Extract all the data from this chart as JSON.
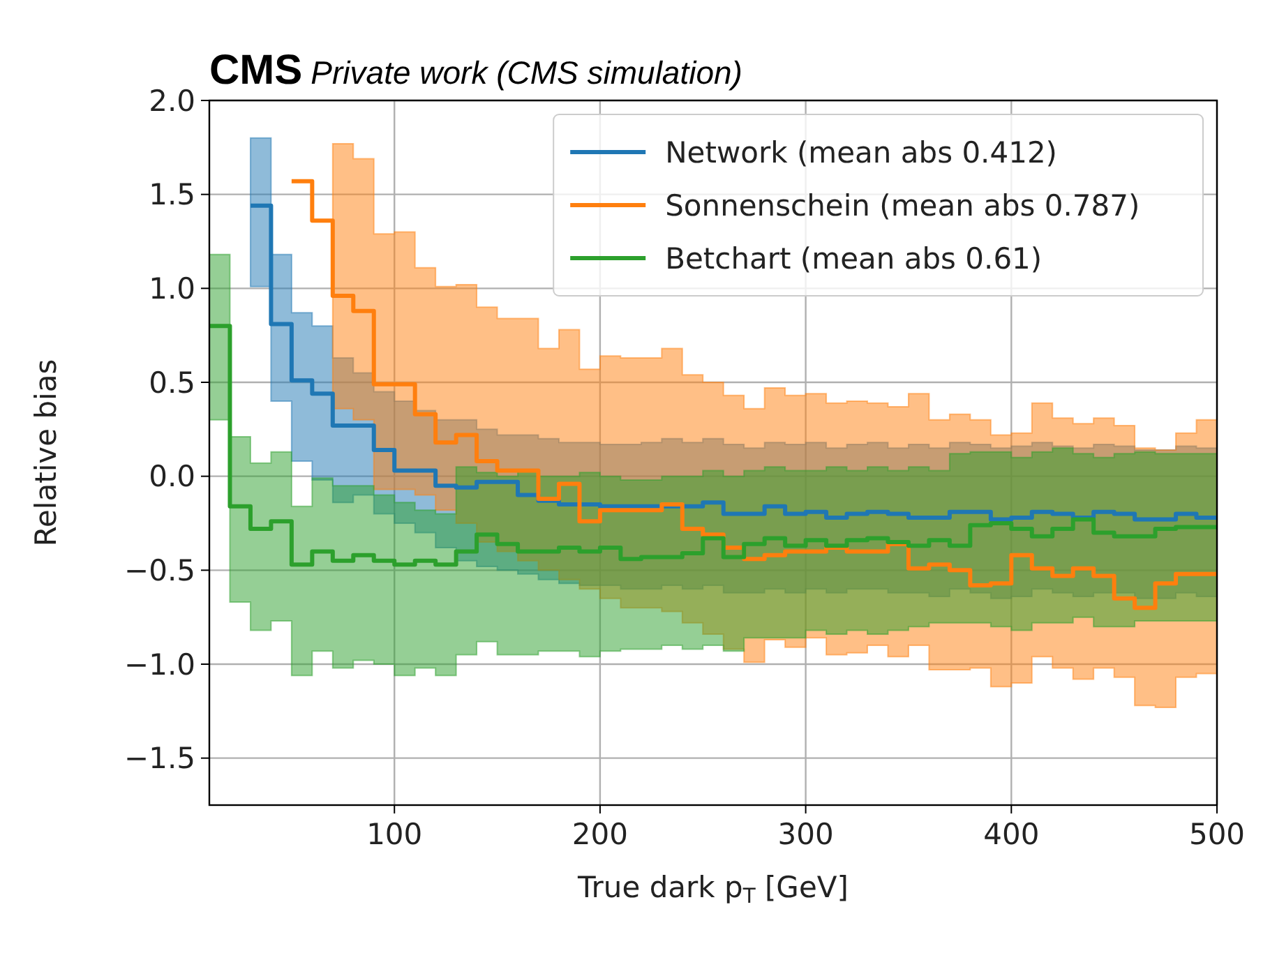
{
  "chart_data": {
    "type": "step",
    "title": "CMS",
    "subtitle": "Private work (CMS simulation)",
    "xlabel": "True dark p$_{T}$ [GeV]",
    "ylabel": "Relative bias",
    "x": [
      10,
      20,
      30,
      40,
      50,
      60,
      70,
      80,
      90,
      100,
      110,
      120,
      130,
      140,
      150,
      160,
      170,
      180,
      190,
      200,
      210,
      220,
      230,
      240,
      250,
      260,
      270,
      280,
      290,
      300,
      310,
      320,
      330,
      340,
      350,
      360,
      370,
      380,
      390,
      400,
      410,
      420,
      430,
      440,
      450,
      460,
      470,
      480,
      490,
      500
    ],
    "xlim": [
      10,
      500
    ],
    "ylim": [
      -1.75,
      2.0
    ],
    "xticks": [
      100,
      200,
      300,
      400,
      500
    ],
    "yticks": [
      {
        "value": -1.5,
        "label": "−1.5"
      },
      {
        "value": -1.0,
        "label": "−1.0"
      },
      {
        "value": -0.5,
        "label": "−0.5"
      },
      {
        "value": 0,
        "label": "0.0"
      },
      {
        "value": 0.5,
        "label": "0.5"
      },
      {
        "value": 1.0,
        "label": "1.0"
      },
      {
        "value": 1.5,
        "label": "1.5"
      },
      {
        "value": 2.0,
        "label": "2.0"
      }
    ],
    "grid": true,
    "legend": "top right",
    "series": [
      {
        "name": "Network (mean abs 0.412)",
        "color": "#1f77b4",
        "values": [
          null,
          null,
          1.44,
          0.81,
          0.51,
          0.44,
          0.27,
          0.27,
          0.14,
          0.03,
          0.03,
          -0.05,
          -0.06,
          -0.03,
          -0.03,
          -0.1,
          -0.13,
          -0.15,
          -0.15,
          -0.16,
          -0.16,
          -0.16,
          -0.16,
          -0.16,
          -0.14,
          -0.2,
          -0.2,
          -0.16,
          -0.2,
          -0.19,
          -0.22,
          -0.2,
          -0.19,
          -0.2,
          -0.22,
          -0.22,
          -0.19,
          -0.19,
          -0.23,
          -0.22,
          -0.19,
          -0.2,
          -0.22,
          -0.19,
          -0.2,
          -0.23,
          -0.23,
          -0.2,
          -0.22,
          -0.22
        ],
        "upper": [
          null,
          null,
          1.8,
          1.18,
          0.87,
          0.8,
          0.63,
          0.55,
          0.45,
          0.4,
          0.35,
          0.3,
          0.3,
          0.25,
          0.22,
          0.22,
          0.2,
          0.18,
          0.18,
          0.17,
          0.17,
          0.18,
          0.2,
          0.18,
          0.2,
          0.17,
          0.15,
          0.18,
          0.17,
          0.18,
          0.15,
          0.17,
          0.18,
          0.15,
          0.17,
          0.15,
          0.18,
          0.17,
          0.15,
          0.16,
          0.18,
          0.16,
          0.15,
          0.17,
          0.16,
          0.14,
          0.14,
          0.16,
          0.15,
          0.15
        ],
        "lower": [
          null,
          null,
          1.01,
          0.4,
          0.08,
          -0.02,
          -0.14,
          -0.1,
          -0.2,
          -0.25,
          -0.3,
          -0.38,
          -0.45,
          -0.48,
          -0.5,
          -0.52,
          -0.55,
          -0.57,
          -0.58,
          -0.58,
          -0.6,
          -0.6,
          -0.58,
          -0.6,
          -0.58,
          -0.62,
          -0.62,
          -0.6,
          -0.62,
          -0.6,
          -0.62,
          -0.6,
          -0.6,
          -0.62,
          -0.62,
          -0.64,
          -0.6,
          -0.62,
          -0.65,
          -0.64,
          -0.6,
          -0.62,
          -0.64,
          -0.62,
          -0.62,
          -0.65,
          -0.65,
          -0.62,
          -0.64,
          -0.64
        ]
      },
      {
        "name": "Sonnenschein (mean abs 0.787)",
        "color": "#ff7f0e",
        "values": [
          null,
          null,
          null,
          null,
          1.57,
          1.36,
          0.96,
          0.88,
          0.49,
          0.49,
          0.33,
          0.18,
          0.22,
          0.08,
          0.03,
          0.03,
          -0.12,
          -0.04,
          -0.24,
          -0.18,
          -0.18,
          -0.18,
          -0.15,
          -0.28,
          -0.31,
          -0.38,
          -0.44,
          -0.42,
          -0.4,
          -0.4,
          -0.38,
          -0.4,
          -0.4,
          -0.36,
          -0.49,
          -0.47,
          -0.5,
          -0.58,
          -0.57,
          -0.42,
          -0.49,
          -0.53,
          -0.49,
          -0.53,
          -0.65,
          -0.7,
          -0.57,
          -0.52,
          -0.52,
          -0.52
        ],
        "upper": [
          null,
          null,
          null,
          null,
          null,
          null,
          1.77,
          1.69,
          1.29,
          1.3,
          1.11,
          1.01,
          1.02,
          0.9,
          0.84,
          0.84,
          0.68,
          0.78,
          0.57,
          0.64,
          0.63,
          0.63,
          0.68,
          0.54,
          0.5,
          0.43,
          0.36,
          0.47,
          0.43,
          0.44,
          0.39,
          0.4,
          0.39,
          0.37,
          0.44,
          0.3,
          0.33,
          0.3,
          0.22,
          0.23,
          0.39,
          0.31,
          0.28,
          0.31,
          0.27,
          0.15,
          0.14,
          0.23,
          0.3,
          0.3
        ],
        "lower": [
          null,
          null,
          null,
          null,
          null,
          null,
          0.36,
          0.3,
          -0.07,
          -0.07,
          -0.1,
          -0.18,
          -0.25,
          -0.35,
          -0.4,
          -0.45,
          -0.5,
          -0.55,
          -0.6,
          -0.65,
          -0.7,
          -0.7,
          -0.72,
          -0.78,
          -0.84,
          -0.92,
          -0.99,
          -0.87,
          -0.91,
          -0.86,
          -0.95,
          -0.94,
          -0.9,
          -0.96,
          -0.9,
          -1.03,
          -1.03,
          -1.02,
          -1.12,
          -1.1,
          -0.96,
          -1.02,
          -1.08,
          -1.02,
          -1.07,
          -1.22,
          -1.23,
          -1.07,
          -1.05,
          -1.05
        ]
      },
      {
        "name": "Betchart (mean abs 0.61)",
        "color": "#2ca02c",
        "values": [
          0.8,
          -0.16,
          -0.28,
          -0.24,
          -0.47,
          -0.4,
          -0.45,
          -0.42,
          -0.45,
          -0.47,
          -0.45,
          -0.47,
          -0.4,
          -0.31,
          -0.36,
          -0.4,
          -0.4,
          -0.38,
          -0.4,
          -0.38,
          -0.44,
          -0.43,
          -0.43,
          -0.41,
          -0.33,
          -0.43,
          -0.36,
          -0.33,
          -0.37,
          -0.34,
          -0.37,
          -0.34,
          -0.33,
          -0.35,
          -0.37,
          -0.34,
          -0.37,
          -0.26,
          -0.25,
          -0.28,
          -0.32,
          -0.28,
          -0.23,
          -0.3,
          -0.32,
          -0.32,
          -0.28,
          -0.27,
          -0.27,
          -0.27
        ],
        "upper": [
          1.18,
          0.21,
          0.07,
          0.13,
          -0.16,
          -0.01,
          -0.05,
          -0.05,
          -0.1,
          -0.14,
          -0.18,
          -0.2,
          0.05,
          0.02,
          0.0,
          0.03,
          0.0,
          0.0,
          0.02,
          0.0,
          -0.02,
          -0.02,
          0.0,
          0.0,
          0.03,
          0.0,
          0.03,
          0.05,
          0.03,
          0.03,
          0.05,
          0.03,
          0.05,
          0.03,
          0.05,
          0.03,
          0.12,
          0.13,
          0.13,
          0.1,
          0.13,
          0.15,
          0.12,
          0.1,
          0.12,
          0.13,
          0.12,
          0.12,
          0.12,
          0.12
        ],
        "lower": [
          0.3,
          -0.67,
          -0.82,
          -0.77,
          -1.06,
          -0.93,
          -1.02,
          -0.98,
          -1.0,
          -1.06,
          -1.02,
          -1.06,
          -0.95,
          -0.88,
          -0.95,
          -0.95,
          -0.93,
          -0.93,
          -0.96,
          -0.93,
          -0.92,
          -0.92,
          -0.9,
          -0.92,
          -0.9,
          -0.93,
          -0.86,
          -0.86,
          -0.86,
          -0.82,
          -0.84,
          -0.82,
          -0.84,
          -0.82,
          -0.8,
          -0.78,
          -0.78,
          -0.78,
          -0.8,
          -0.82,
          -0.78,
          -0.78,
          -0.75,
          -0.8,
          -0.8,
          -0.77,
          -0.77,
          -0.77,
          -0.77,
          -0.77
        ]
      }
    ]
  }
}
